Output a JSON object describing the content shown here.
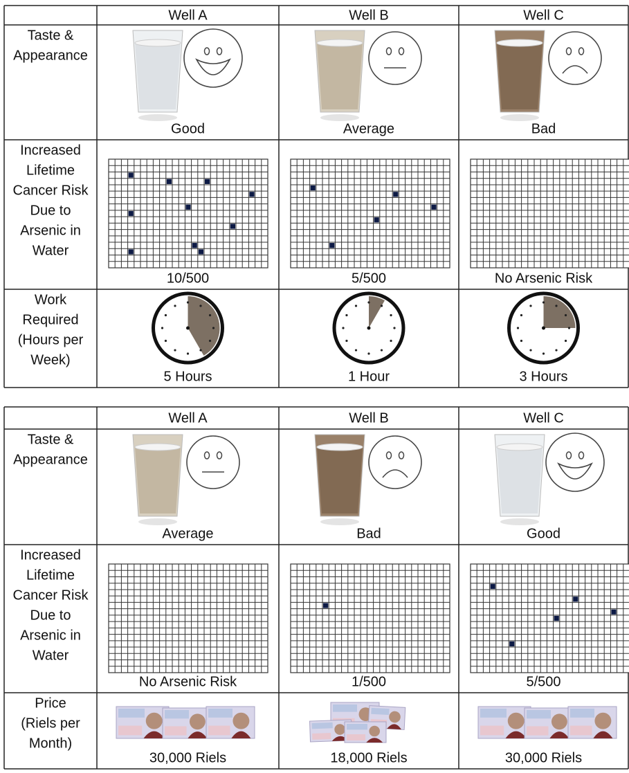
{
  "tables": [
    {
      "headers": [
        "Well A",
        "Well B",
        "Well C"
      ],
      "rows": [
        {
          "label": [
            "Taste &",
            "Appearance"
          ],
          "cells": [
            "Good",
            "Average",
            "Bad"
          ]
        },
        {
          "label": [
            "Increased",
            "Lifetime",
            "Cancer Risk",
            "Due to",
            "Arsenic in",
            "Water"
          ],
          "cells": [
            "10/500",
            "5/500",
            "No Arsenic Risk"
          ]
        },
        {
          "label": [
            "Work",
            "Required",
            "(Hours per",
            "Week)"
          ],
          "cells": [
            "5 Hours",
            "1 Hour",
            "3 Hours"
          ]
        }
      ]
    },
    {
      "headers": [
        "Well A",
        "Well B",
        "Well C"
      ],
      "rows": [
        {
          "label": [
            "Taste &",
            "Appearance"
          ],
          "cells": [
            "Average",
            "Bad",
            "Good"
          ]
        },
        {
          "label": [
            "Increased",
            "Lifetime",
            "Cancer Risk",
            "Due to",
            "Arsenic in",
            "Water"
          ],
          "cells": [
            "No Arsenic Risk",
            "1/500",
            "5/500"
          ]
        },
        {
          "label": [
            "Price",
            "(Riels per",
            "Month)"
          ],
          "cells": [
            "30,000 Riels",
            "18,000 Riels",
            "30,000 Riels"
          ]
        }
      ]
    }
  ]
}
